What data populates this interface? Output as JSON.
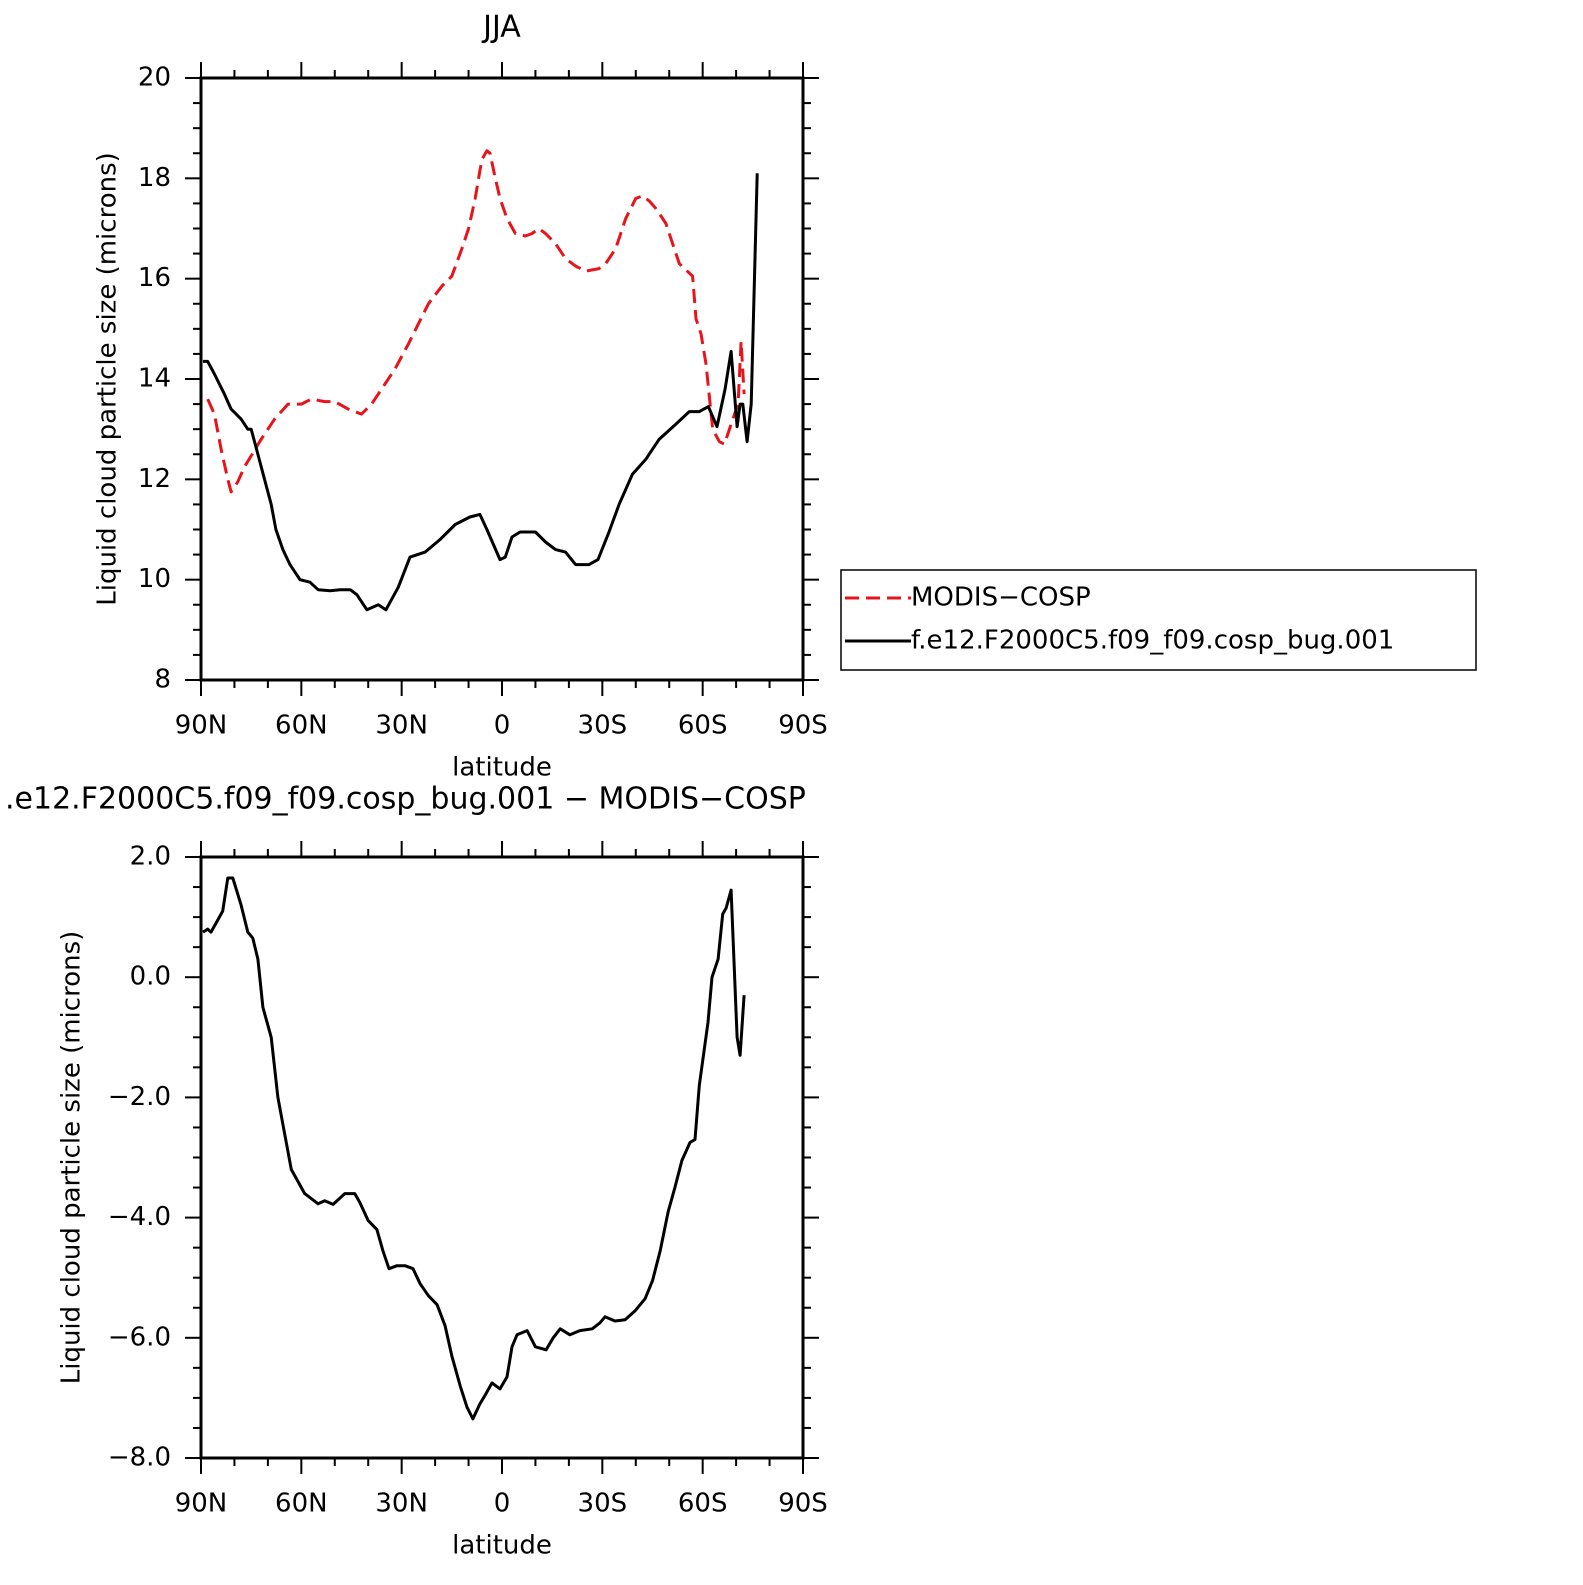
{
  "chart_data": [
    {
      "type": "line",
      "title": "JJA",
      "xlabel": "latitude",
      "ylabel": "Liquid cloud particle size (microns)",
      "xlim": [
        90,
        -90
      ],
      "xticks": [
        {
          "value": 90,
          "label": "90N"
        },
        {
          "value": 60,
          "label": "60N"
        },
        {
          "value": 30,
          "label": "30N"
        },
        0,
        {
          "value": -30,
          "label": "30S"
        },
        {
          "value": -60,
          "label": "60S"
        },
        {
          "value": -90,
          "label": "90S"
        }
      ],
      "xminor_ticks": [
        80,
        70,
        50,
        40,
        20,
        10,
        -10,
        -20,
        -40,
        -50,
        -70,
        -80
      ],
      "ylim": [
        8,
        20
      ],
      "yticks": [
        8,
        10,
        12,
        14,
        16,
        18,
        20
      ],
      "yminor_ticks": [
        8.5,
        9,
        9.5,
        10.5,
        11,
        11.5,
        12.5,
        13,
        13.5,
        14.5,
        15,
        15.5,
        16.5,
        17,
        17.5,
        18.5,
        19,
        19.5
      ],
      "legend": "right",
      "series": [
        {
          "name": "MODIS−COSP",
          "color": "#e8141b",
          "line_style": "dashed",
          "x": [
            88,
            86,
            84,
            82,
            81,
            79,
            77,
            72,
            68,
            64,
            60,
            57,
            53,
            50,
            46,
            42,
            39,
            36,
            32,
            28,
            25,
            22,
            18,
            15,
            12,
            10,
            8,
            6.5,
            5.8,
            4.5,
            3.6,
            2,
            0.6,
            -1.5,
            -4,
            -7,
            -9,
            -11,
            -13,
            -16,
            -19,
            -22,
            -25,
            -29,
            -31,
            -34,
            -37,
            -40,
            -42,
            -44,
            -46,
            -49,
            -51,
            -53,
            -57,
            -58,
            -59.5,
            -61,
            -63,
            -65,
            -66.5,
            -69,
            -70.6,
            -71.5,
            -72.4
          ],
          "values": [
            13.6,
            13.3,
            12.6,
            12.0,
            11.75,
            11.95,
            12.25,
            12.8,
            13.2,
            13.5,
            13.5,
            13.6,
            13.55,
            13.55,
            13.4,
            13.3,
            13.5,
            13.8,
            14.2,
            14.7,
            15.1,
            15.5,
            15.85,
            16.05,
            16.6,
            17.0,
            17.6,
            18.2,
            18.4,
            18.55,
            18.5,
            18.0,
            17.6,
            17.2,
            16.9,
            16.85,
            16.9,
            17.0,
            16.9,
            16.7,
            16.4,
            16.25,
            16.15,
            16.2,
            16.3,
            16.6,
            17.2,
            17.6,
            17.65,
            17.55,
            17.4,
            17.1,
            16.7,
            16.3,
            16.05,
            15.2,
            14.9,
            14.3,
            13.0,
            12.75,
            12.7,
            13.2,
            13.5,
            14.75,
            13.7
          ]
        },
        {
          "name": "f.e12.F2000C5.f09_f09.cosp_bug.001",
          "color": "#000000",
          "line_style": "solid",
          "x": [
            89.4,
            88,
            86,
            83,
            81,
            78,
            76,
            75,
            73,
            71,
            69,
            67.6,
            65.5,
            63.4,
            60.4,
            57.4,
            55,
            51.4,
            48.4,
            45.4,
            43.4,
            40.4,
            37,
            34.7,
            31,
            27.5,
            23,
            18.5,
            14,
            9.6,
            6.6,
            4.5,
            0.6,
            -1,
            -3,
            -5.4,
            -10,
            -13,
            -16,
            -19,
            -22,
            -26,
            -28.7,
            -32,
            -35,
            -39,
            -43,
            -47,
            -52,
            -56,
            -59,
            -61.7,
            -64.3,
            -66.7,
            -68.5,
            -70.3,
            -71.2,
            -72,
            -73.3,
            -74.5,
            -76.3
          ],
          "values": [
            14.35,
            14.35,
            14.1,
            13.7,
            13.4,
            13.2,
            13.0,
            13.0,
            12.5,
            12.0,
            11.5,
            11.0,
            10.6,
            10.3,
            10.0,
            9.95,
            9.8,
            9.78,
            9.8,
            9.8,
            9.7,
            9.4,
            9.5,
            9.4,
            9.85,
            10.45,
            10.55,
            10.8,
            11.1,
            11.25,
            11.3,
            11.0,
            10.4,
            10.45,
            10.85,
            10.95,
            10.95,
            10.75,
            10.6,
            10.55,
            10.3,
            10.3,
            10.4,
            10.95,
            11.5,
            12.1,
            12.4,
            12.8,
            13.1,
            13.35,
            13.35,
            13.45,
            13.05,
            13.8,
            14.55,
            13.05,
            13.5,
            13.5,
            12.75,
            13.5,
            18.1
          ]
        }
      ]
    },
    {
      "type": "line",
      "title": ".e12.F2000C5.f09_f09.cosp_bug.001 − MODIS−COSP",
      "xlabel": "latitude",
      "ylabel": "Liquid cloud particle size (microns)",
      "xlim": [
        90,
        -90
      ],
      "xticks": [
        {
          "value": 90,
          "label": "90N"
        },
        {
          "value": 60,
          "label": "60N"
        },
        {
          "value": 30,
          "label": "30N"
        },
        0,
        {
          "value": -30,
          "label": "30S"
        },
        {
          "value": -60,
          "label": "60S"
        },
        {
          "value": -90,
          "label": "90S"
        }
      ],
      "xminor_ticks": [
        80,
        70,
        50,
        40,
        20,
        10,
        -10,
        -20,
        -40,
        -50,
        -70,
        -80
      ],
      "ylim": [
        -8,
        2
      ],
      "yticks": [
        {
          "value": -8,
          "label": "−8.0"
        },
        {
          "value": -6,
          "label": "−6.0"
        },
        {
          "value": -4,
          "label": "−4.0"
        },
        {
          "value": -2,
          "label": "−2.0"
        },
        {
          "value": 0,
          "label": "0.0"
        },
        {
          "value": 2,
          "label": "2.0"
        }
      ],
      "yminor_ticks": [
        -7.5,
        -7,
        -6.5,
        -5.5,
        -5,
        -4.5,
        -3.5,
        -3,
        -2.5,
        -1.5,
        -1,
        -0.5,
        0.5,
        1,
        1.5
      ],
      "series": [
        {
          "color": "#000000",
          "line_style": "solid",
          "x": [
            89.4,
            88,
            87,
            85,
            83.5,
            82,
            80.5,
            78,
            76,
            74.5,
            73,
            71.5,
            69,
            67,
            65,
            63,
            61,
            59,
            55,
            53,
            50.5,
            47,
            44,
            42.5,
            40,
            37.4,
            35.6,
            33.8,
            31.4,
            29,
            26.6,
            24.5,
            22,
            19.4,
            17,
            15,
            12.5,
            10.5,
            8.7,
            6.6,
            5,
            3,
            0.6,
            -1.5,
            -3,
            -4.5,
            -7.5,
            -10,
            -13.2,
            -15.3,
            -17.4,
            -20.3,
            -23.3,
            -27,
            -29.3,
            -30.8,
            -33.8,
            -36.8,
            -39.8,
            -42.8,
            -45,
            -47.3,
            -49.7,
            -51.7,
            -53.8,
            -56.2,
            -57.7,
            -59,
            -61.6,
            -62.8,
            -64.6,
            -66,
            -67,
            -68.5,
            -70.3,
            -71.2,
            -72.4
          ],
          "values": [
            0.75,
            0.8,
            0.75,
            0.95,
            1.1,
            1.65,
            1.65,
            1.2,
            0.75,
            0.65,
            0.3,
            -0.5,
            -1.0,
            -2.0,
            -2.6,
            -3.2,
            -3.4,
            -3.6,
            -3.77,
            -3.72,
            -3.78,
            -3.6,
            -3.6,
            -3.75,
            -4.05,
            -4.2,
            -4.55,
            -4.85,
            -4.8,
            -4.8,
            -4.85,
            -5.1,
            -5.3,
            -5.45,
            -5.8,
            -6.3,
            -6.8,
            -7.15,
            -7.35,
            -7.1,
            -6.95,
            -6.75,
            -6.85,
            -6.65,
            -6.15,
            -5.95,
            -5.88,
            -6.15,
            -6.2,
            -6.0,
            -5.85,
            -5.95,
            -5.88,
            -5.85,
            -5.75,
            -5.65,
            -5.72,
            -5.7,
            -5.55,
            -5.35,
            -5.05,
            -4.55,
            -3.9,
            -3.5,
            -3.05,
            -2.75,
            -2.7,
            -1.8,
            -0.75,
            0.0,
            0.3,
            1.05,
            1.15,
            1.45,
            -1.0,
            -1.3,
            -0.3
          ]
        }
      ]
    }
  ]
}
